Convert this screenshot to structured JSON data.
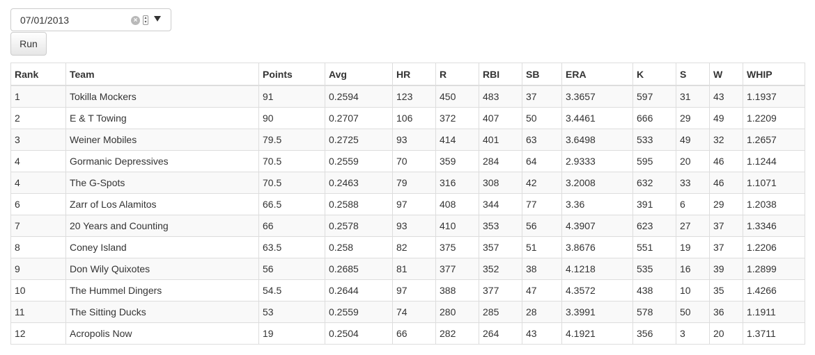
{
  "date_picker": {
    "value": "07/01/2013"
  },
  "run_button": {
    "label": "Run"
  },
  "table": {
    "columns": [
      "Rank",
      "Team",
      "Points",
      "Avg",
      "HR",
      "R",
      "RBI",
      "SB",
      "ERA",
      "K",
      "S",
      "W",
      "WHIP"
    ],
    "rows": [
      [
        "1",
        "Tokilla Mockers",
        "91",
        "0.2594",
        "123",
        "450",
        "483",
        "37",
        "3.3657",
        "597",
        "31",
        "43",
        "1.1937"
      ],
      [
        "2",
        "E & T Towing",
        "90",
        "0.2707",
        "106",
        "372",
        "407",
        "50",
        "3.4461",
        "666",
        "29",
        "49",
        "1.2209"
      ],
      [
        "3",
        "Weiner Mobiles",
        "79.5",
        "0.2725",
        "93",
        "414",
        "401",
        "63",
        "3.6498",
        "533",
        "49",
        "32",
        "1.2657"
      ],
      [
        "4",
        "Gormanic Depressives",
        "70.5",
        "0.2559",
        "70",
        "359",
        "284",
        "64",
        "2.9333",
        "595",
        "20",
        "46",
        "1.1244"
      ],
      [
        "4",
        "The G-Spots",
        "70.5",
        "0.2463",
        "79",
        "316",
        "308",
        "42",
        "3.2008",
        "632",
        "33",
        "46",
        "1.1071"
      ],
      [
        "6",
        "Zarr of Los Alamitos",
        "66.5",
        "0.2588",
        "97",
        "408",
        "344",
        "77",
        "3.36",
        "391",
        "6",
        "29",
        "1.2038"
      ],
      [
        "7",
        "20 Years and Counting",
        "66",
        "0.2578",
        "93",
        "410",
        "353",
        "56",
        "4.3907",
        "623",
        "27",
        "37",
        "1.3346"
      ],
      [
        "8",
        "Coney Island",
        "63.5",
        "0.258",
        "82",
        "375",
        "357",
        "51",
        "3.8676",
        "551",
        "19",
        "37",
        "1.2206"
      ],
      [
        "9",
        "Don Wily Quixotes",
        "56",
        "0.2685",
        "81",
        "377",
        "352",
        "38",
        "4.1218",
        "535",
        "16",
        "39",
        "1.2899"
      ],
      [
        "10",
        "The Hummel Dingers",
        "54.5",
        "0.2644",
        "97",
        "388",
        "377",
        "47",
        "4.3572",
        "438",
        "10",
        "35",
        "1.4266"
      ],
      [
        "11",
        "The Sitting Ducks",
        "53",
        "0.2559",
        "74",
        "280",
        "285",
        "28",
        "3.3991",
        "578",
        "50",
        "36",
        "1.1911"
      ],
      [
        "12",
        "Acropolis Now",
        "19",
        "0.2504",
        "66",
        "282",
        "264",
        "43",
        "4.1921",
        "356",
        "3",
        "20",
        "1.3711"
      ]
    ]
  }
}
